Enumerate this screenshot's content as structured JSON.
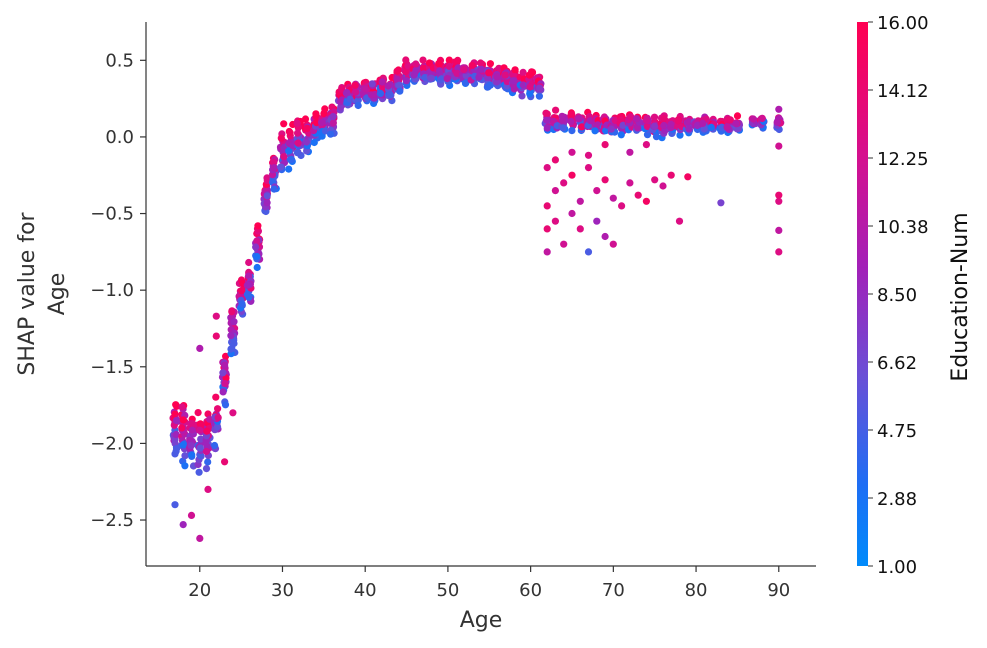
{
  "chart_data": {
    "type": "scatter",
    "title": "",
    "xlabel": "Age",
    "ylabel_lines": [
      "SHAP value for",
      "Age"
    ],
    "xlim": [
      13.5,
      94.5
    ],
    "ylim": [
      -2.8,
      0.75
    ],
    "x_ticks": [
      20,
      30,
      40,
      50,
      60,
      70,
      80,
      90
    ],
    "y_ticks": [
      0.5,
      0.0,
      -0.5,
      -1.0,
      -1.5,
      -2.0,
      -2.5
    ],
    "y_tick_labels": [
      "0.5",
      "0.0",
      "−0.5",
      "−1.0",
      "−1.5",
      "−2.0",
      "−2.5"
    ],
    "grid": false,
    "color_feature": "Education-Num",
    "colorbar_ticks": [
      "16.00",
      "14.12",
      "12.25",
      "10.38",
      "8.50",
      "6.62",
      "4.75",
      "2.88",
      "1.00"
    ],
    "color_range": [
      1.0,
      16.0
    ],
    "colors": {
      "low": "#008bfb",
      "high": "#ff0052"
    },
    "age_profile": [
      [
        17,
        -1.9,
        0.18
      ],
      [
        18,
        -1.92,
        0.2
      ],
      [
        19,
        -1.95,
        0.22
      ],
      [
        20,
        -1.98,
        0.22
      ],
      [
        21,
        -1.95,
        0.22
      ],
      [
        22,
        -1.85,
        0.2
      ],
      [
        23,
        -1.55,
        0.2
      ],
      [
        24,
        -1.25,
        0.18
      ],
      [
        25,
        -1.05,
        0.18
      ],
      [
        26,
        -0.95,
        0.15
      ],
      [
        27,
        -0.7,
        0.15
      ],
      [
        28,
        -0.4,
        0.15
      ],
      [
        29,
        -0.2,
        0.15
      ],
      [
        30,
        -0.1,
        0.15
      ],
      [
        31,
        -0.05,
        0.15
      ],
      [
        32,
        -0.02,
        0.14
      ],
      [
        33,
        0.0,
        0.13
      ],
      [
        34,
        0.05,
        0.12
      ],
      [
        35,
        0.1,
        0.1
      ],
      [
        36,
        0.12,
        0.1
      ],
      [
        37,
        0.25,
        0.08
      ],
      [
        38,
        0.27,
        0.08
      ],
      [
        39,
        0.28,
        0.08
      ],
      [
        40,
        0.29,
        0.08
      ],
      [
        41,
        0.3,
        0.08
      ],
      [
        42,
        0.31,
        0.08
      ],
      [
        43,
        0.32,
        0.08
      ],
      [
        44,
        0.36,
        0.08
      ],
      [
        45,
        0.42,
        0.08
      ],
      [
        46,
        0.43,
        0.08
      ],
      [
        47,
        0.43,
        0.08
      ],
      [
        48,
        0.43,
        0.08
      ],
      [
        49,
        0.43,
        0.08
      ],
      [
        50,
        0.43,
        0.08
      ],
      [
        51,
        0.42,
        0.08
      ],
      [
        52,
        0.42,
        0.08
      ],
      [
        53,
        0.42,
        0.08
      ],
      [
        54,
        0.42,
        0.08
      ],
      [
        55,
        0.4,
        0.08
      ],
      [
        56,
        0.39,
        0.08
      ],
      [
        57,
        0.38,
        0.08
      ],
      [
        58,
        0.37,
        0.08
      ],
      [
        59,
        0.36,
        0.08
      ],
      [
        60,
        0.35,
        0.08
      ],
      [
        61,
        0.34,
        0.08
      ],
      [
        62,
        0.1,
        0.08
      ],
      [
        63,
        0.1,
        0.08
      ],
      [
        64,
        0.1,
        0.08
      ],
      [
        65,
        0.09,
        0.08
      ],
      [
        66,
        0.09,
        0.08
      ],
      [
        67,
        0.08,
        0.08
      ],
      [
        68,
        0.08,
        0.08
      ],
      [
        69,
        0.08,
        0.08
      ],
      [
        70,
        0.08,
        0.08
      ],
      [
        71,
        0.08,
        0.07
      ],
      [
        72,
        0.08,
        0.07
      ],
      [
        73,
        0.08,
        0.07
      ],
      [
        74,
        0.08,
        0.07
      ],
      [
        75,
        0.08,
        0.07
      ],
      [
        76,
        0.08,
        0.07
      ],
      [
        77,
        0.08,
        0.06
      ],
      [
        78,
        0.08,
        0.06
      ],
      [
        79,
        0.08,
        0.06
      ],
      [
        80,
        0.08,
        0.06
      ],
      [
        81,
        0.08,
        0.06
      ],
      [
        82,
        0.08,
        0.05
      ],
      [
        83,
        0.08,
        0.05
      ],
      [
        84,
        0.08,
        0.05
      ],
      [
        85,
        0.08,
        0.05
      ],
      [
        87,
        0.1,
        0.04
      ],
      [
        88,
        0.1,
        0.04
      ],
      [
        90,
        0.1,
        0.06
      ]
    ],
    "outliers": [
      [
        17,
        -2.4,
        5
      ],
      [
        18,
        -2.53,
        9
      ],
      [
        19,
        -2.47,
        12
      ],
      [
        20,
        -2.62,
        11
      ],
      [
        20,
        -1.38,
        10
      ],
      [
        21,
        -2.3,
        13
      ],
      [
        23,
        -2.12,
        14
      ],
      [
        24,
        -1.8,
        13
      ],
      [
        22,
        -1.3,
        14
      ],
      [
        22,
        -1.17,
        13
      ],
      [
        62,
        -0.75,
        11
      ],
      [
        62,
        -0.6,
        14
      ],
      [
        63,
        -0.55,
        13
      ],
      [
        64,
        -0.7,
        12
      ],
      [
        65,
        -0.5,
        11
      ],
      [
        66,
        -0.6,
        13
      ],
      [
        67,
        -0.75,
        5
      ],
      [
        68,
        -0.55,
        9
      ],
      [
        69,
        -0.65,
        10
      ],
      [
        70,
        -0.7,
        12
      ],
      [
        62,
        -0.45,
        14
      ],
      [
        63,
        -0.35,
        12
      ],
      [
        64,
        -0.3,
        13
      ],
      [
        65,
        -0.25,
        15
      ],
      [
        66,
        -0.42,
        11
      ],
      [
        67,
        -0.2,
        13
      ],
      [
        68,
        -0.35,
        12
      ],
      [
        69,
        -0.28,
        14
      ],
      [
        70,
        -0.4,
        11
      ],
      [
        71,
        -0.45,
        13
      ],
      [
        72,
        -0.3,
        12
      ],
      [
        73,
        -0.38,
        14
      ],
      [
        74,
        -0.42,
        15
      ],
      [
        75,
        -0.28,
        13
      ],
      [
        76,
        -0.32,
        12
      ],
      [
        77,
        -0.25,
        14
      ],
      [
        78,
        -0.55,
        13
      ],
      [
        79,
        -0.26,
        15
      ],
      [
        83,
        -0.43,
        7
      ],
      [
        62,
        -0.2,
        13
      ],
      [
        63,
        -0.15,
        14
      ],
      [
        65,
        -0.1,
        12
      ],
      [
        67,
        -0.12,
        13
      ],
      [
        69,
        -0.05,
        14
      ],
      [
        72,
        -0.1,
        11
      ],
      [
        74,
        -0.05,
        13
      ],
      [
        90,
        -0.75,
        13
      ],
      [
        90,
        -0.61,
        11
      ],
      [
        90,
        -0.42,
        13
      ],
      [
        90,
        -0.38,
        14
      ],
      [
        90,
        -0.06,
        12
      ],
      [
        90,
        0.18,
        10
      ],
      [
        88,
        0.12,
        12
      ]
    ]
  }
}
